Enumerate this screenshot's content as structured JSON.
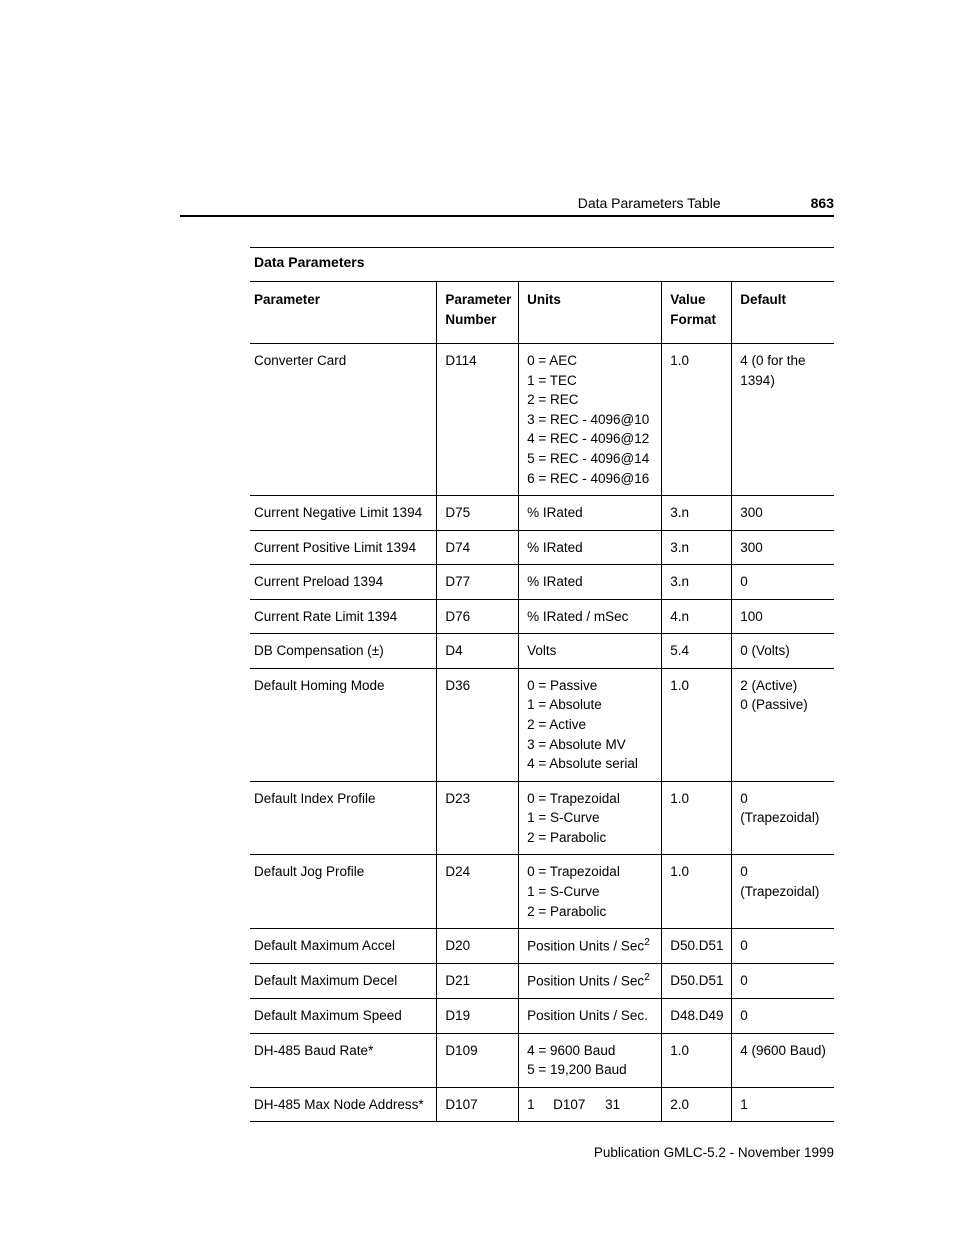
{
  "header": {
    "section_title": "Data Parameters Table",
    "page_number": "863"
  },
  "table": {
    "title": "Data Parameters",
    "columns": {
      "parameter": "Parameter",
      "number_l1": "Parameter",
      "number_l2": "Number",
      "units": "Units",
      "format_l1": "Value",
      "format_l2": "Format",
      "default": "Default"
    },
    "rows": [
      {
        "parameter": "Converter Card",
        "number": "D114",
        "units": [
          "0 = AEC",
          "1 = TEC",
          "2 = REC",
          "3 = REC - 4096@10",
          "4 = REC - 4096@12",
          "5 = REC - 4096@14",
          "6 = REC - 4096@16"
        ],
        "format": "1.0",
        "default": [
          "4 (0 for the",
          "1394)"
        ]
      },
      {
        "parameter": "Current Negative Limit 1394",
        "number": "D75",
        "units": [
          "% IRated"
        ],
        "format": "3.n",
        "default": [
          "300"
        ]
      },
      {
        "parameter": "Current Positive Limit 1394",
        "number": "D74",
        "units": [
          "% IRated"
        ],
        "format": "3.n",
        "default": [
          "300"
        ]
      },
      {
        "parameter": "Current Preload 1394",
        "number": "D77",
        "units": [
          "% IRated"
        ],
        "format": "3.n",
        "default": [
          "0"
        ]
      },
      {
        "parameter": "Current Rate Limit 1394",
        "number": "D76",
        "units": [
          "% IRated / mSec"
        ],
        "format": "4.n",
        "default": [
          "100"
        ]
      },
      {
        "parameter": "DB Compensation (±)",
        "number": "D4",
        "units": [
          "Volts"
        ],
        "format": "5.4",
        "default": [
          "0 (Volts)"
        ]
      },
      {
        "parameter": "Default Homing Mode",
        "number": "D36",
        "units": [
          "0 = Passive",
          "1 = Absolute",
          "2 = Active",
          "3 = Absolute MV",
          "4 = Absolute serial"
        ],
        "format": "1.0",
        "default": [
          "2 (Active)",
          "0 (Passive)"
        ]
      },
      {
        "parameter": "Default Index Profile",
        "number": "D23",
        "units": [
          "0 = Trapezoidal",
          "1 = S-Curve",
          "2 = Parabolic"
        ],
        "format": "1.0",
        "default": [
          "0 (Trapezoidal)"
        ]
      },
      {
        "parameter": "Default Jog Profile",
        "number": "D24",
        "units": [
          "0 = Trapezoidal",
          "1 = S-Curve",
          "2 = Parabolic"
        ],
        "format": "1.0",
        "default": [
          "0 (Trapezoidal)"
        ]
      },
      {
        "parameter": "Default Maximum Accel",
        "number": "D20",
        "units_html": "Position Units / Sec<sup>2</sup>",
        "format": "D50.D51",
        "default": [
          "0"
        ]
      },
      {
        "parameter": "Default Maximum Decel",
        "number": "D21",
        "units_html": "Position Units / Sec<sup>2</sup>",
        "format": "D50.D51",
        "default": [
          "0"
        ]
      },
      {
        "parameter": "Default Maximum Speed",
        "number": "D19",
        "units": [
          "Position Units / Sec."
        ],
        "format": "D48.D49",
        "default": [
          "0"
        ]
      },
      {
        "parameter": "DH-485 Baud Rate*",
        "number": "D109",
        "units": [
          "4 = 9600 Baud",
          "5 = 19,200 Baud"
        ],
        "format": "1.0",
        "default": [
          "4 (9600 Baud)"
        ]
      },
      {
        "parameter": "DH-485 Max Node Address*",
        "number": "D107",
        "units_triple": [
          "1",
          "D107",
          "31"
        ],
        "format": "2.0",
        "default": [
          "1"
        ]
      }
    ]
  },
  "footer": {
    "publication": "Publication GMLC-5.2 - November 1999"
  }
}
